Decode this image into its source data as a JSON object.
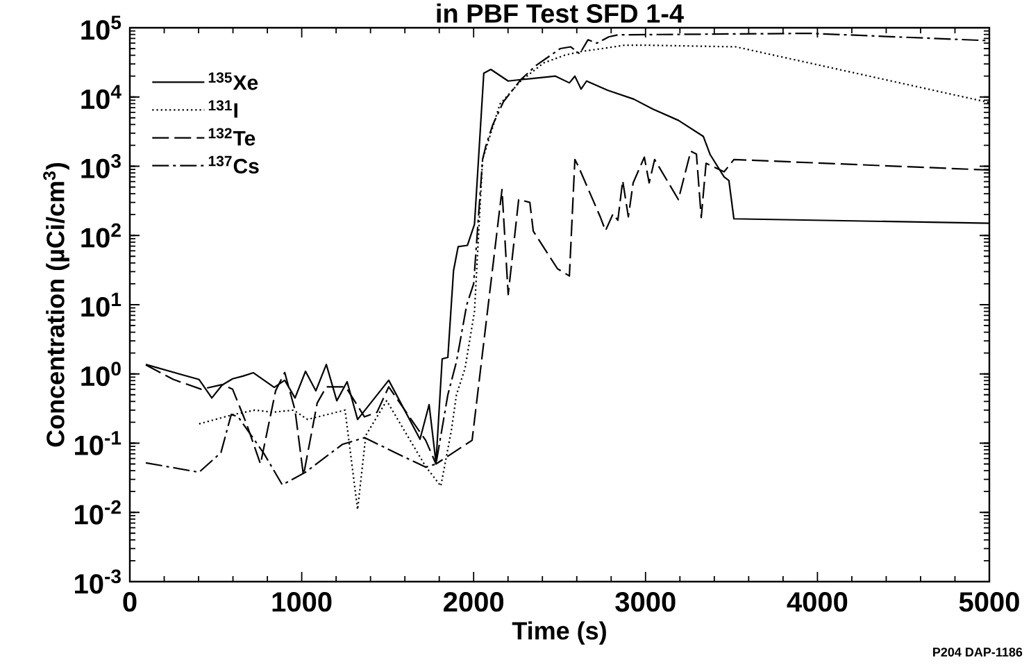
{
  "chart_data": {
    "type": "line",
    "title": "in PBF Test SFD 1-4",
    "xlabel": "Time (s)",
    "ylabel": "Concentration (µCi/cm$^{3}$)",
    "log": "y",
    "xlim": [
      0,
      5000
    ],
    "ylim": [
      0.001,
      100000
    ],
    "xticks": [
      0,
      1000,
      2000,
      3000,
      4000,
      5000
    ],
    "yticks": [
      {
        "value": 0.001,
        "label": "10$^{-3}$"
      },
      {
        "value": 0.01,
        "label": "10$^{-2}$"
      },
      {
        "value": 0.1,
        "label": "10$^{-1}$"
      },
      {
        "value": 1,
        "label": "10$^{0}$"
      },
      {
        "value": 10,
        "label": "10$^{1}$"
      },
      {
        "value": 100,
        "label": "10$^{2}$"
      },
      {
        "value": 1000,
        "label": "10$^{3}$"
      },
      {
        "value": 10000,
        "label": "10$^{4}$"
      },
      {
        "value": 100000,
        "label": "10$^{5}$"
      }
    ],
    "legend": "top left",
    "grid": false,
    "marker": "none",
    "annotations": [
      "P204 DAP-1186"
    ],
    "series": [
      {
        "name": "$^{135}$Xe",
        "color": "#000000",
        "line_style": "solid",
        "x": [
          93,
          403,
          477,
          537,
          598,
          658,
          719,
          840,
          901,
          961,
          1022,
          1082,
          1143,
          1204,
          1264,
          1325,
          1506,
          1688,
          1741,
          1781,
          1817,
          1850,
          1883,
          1910,
          1964,
          2005,
          2059,
          2100,
          2201,
          2274,
          2476,
          2557,
          2589,
          2625,
          2657,
          2779,
          2932,
          3041,
          3191,
          3336,
          3376,
          3457,
          3485,
          3514,
          5000
        ],
        "values": [
          1.37,
          0.83,
          0.45,
          0.69,
          0.85,
          0.93,
          1.04,
          0.64,
          0.81,
          0.45,
          1.09,
          0.57,
          1.37,
          0.41,
          0.77,
          0.22,
          0.81,
          0.114,
          0.36,
          0.052,
          1.65,
          1.73,
          31,
          69,
          72,
          145,
          22000,
          25000,
          17000,
          17800,
          20000,
          16000,
          20000,
          13000,
          17000,
          12500,
          9300,
          6700,
          4600,
          2700,
          1470,
          700,
          620,
          174,
          150
        ]
      },
      {
        "name": "$^{131}$I",
        "color": "#000000",
        "line_style": "dotted",
        "x": [
          403,
          605,
          727,
          832,
          953,
          1034,
          1252,
          1325,
          1373,
          1494,
          1721,
          1809,
          1870,
          1900,
          1950,
          2005,
          2052,
          2153,
          2274,
          2407,
          2528,
          2615,
          2746,
          2880,
          3001,
          3526,
          5000
        ],
        "values": [
          0.19,
          0.26,
          0.3,
          0.28,
          0.3,
          0.22,
          0.3,
          0.011,
          0.13,
          0.41,
          0.046,
          0.024,
          0.15,
          0.5,
          1.2,
          8,
          1250,
          7900,
          17000,
          31000,
          40000,
          45000,
          50000,
          56000,
          56000,
          53000,
          8300
        ]
      },
      {
        "name": "$^{132}$Te",
        "color": "#000000",
        "line_style": "dashed",
        "x": [
          93,
          254,
          416,
          537,
          598,
          679,
          760,
          848,
          901,
          961,
          1010,
          1090,
          1143,
          1256,
          1365,
          1438,
          1506,
          1721,
          1781,
          1991,
          2165,
          2201,
          2262,
          2327,
          2347,
          2488,
          2557,
          2589,
          2609,
          2738,
          2767,
          2811,
          2839,
          2867,
          2900,
          2928,
          2993,
          3021,
          3053,
          3191,
          3263,
          3296,
          3324,
          3352,
          3457,
          3514,
          5000
        ],
        "values": [
          1.35,
          0.83,
          0.6,
          0.7,
          0.6,
          0.19,
          0.05,
          0.57,
          1.05,
          0.3,
          0.034,
          0.38,
          0.65,
          0.65,
          0.24,
          0.28,
          0.65,
          0.11,
          0.05,
          0.11,
          460,
          14,
          330,
          300,
          115,
          33,
          26,
          1250,
          1000,
          182,
          117,
          205,
          166,
          620,
          186,
          575,
          1350,
          575,
          1250,
          330,
          1650,
          1500,
          182,
          1100,
          830,
          1250,
          880
        ]
      },
      {
        "name": "$^{137}$Cs",
        "color": "#000000",
        "line_style": "dashdot",
        "x": [
          93,
          403,
          530,
          590,
          630,
          780,
          887,
          1022,
          1236,
          1365,
          1640,
          1721,
          1781,
          1850,
          1900,
          1960,
          2000,
          2052,
          2072,
          2112,
          2173,
          2274,
          2367,
          2504,
          2564,
          2617,
          2665,
          2718,
          2787,
          2840,
          3958,
          5000
        ],
        "values": [
          0.052,
          0.038,
          0.073,
          0.26,
          0.24,
          0.071,
          0.025,
          0.038,
          0.096,
          0.12,
          0.056,
          0.045,
          0.05,
          0.5,
          1.5,
          10,
          20,
          1250,
          2000,
          4000,
          8500,
          17800,
          29000,
          50000,
          53000,
          42000,
          67000,
          60000,
          74000,
          79000,
          83000,
          65000
        ]
      }
    ]
  }
}
